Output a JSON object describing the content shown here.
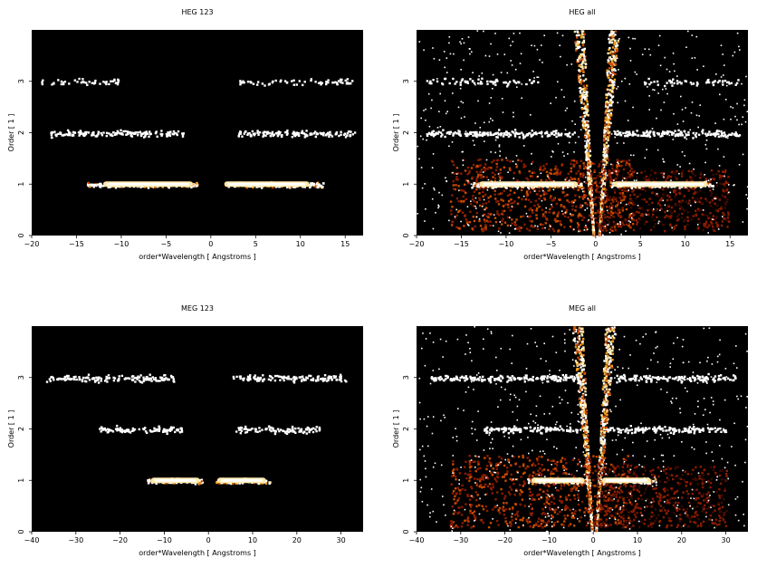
{
  "colors": {
    "background": "#000000",
    "page": "#ffffff",
    "colormap": [
      "#3a0a00",
      "#8a1c00",
      "#c84a00",
      "#f0a020",
      "#ffe9a8",
      "#ffffff"
    ]
  },
  "chart_data": [
    {
      "type": "heatmap",
      "title": "HEG 123",
      "xlabel": "order*Wavelength [ Angstroms ]",
      "ylabel": "Order [ 1 ]",
      "xlim": [
        -20,
        17
      ],
      "ylim": [
        0,
        4
      ],
      "xticks": [
        -20,
        -15,
        -10,
        -5,
        0,
        5,
        10,
        15
      ],
      "yticks": [
        0,
        1,
        2,
        3
      ],
      "bands": [
        {
          "order": 1,
          "x_ranges": [
            [
              -14,
              -1.5
            ],
            [
              1.5,
              12.5
            ]
          ],
          "density": "high",
          "core": [
            [
              -12,
              -2
            ],
            [
              1.5,
              11
            ]
          ]
        },
        {
          "order": 2,
          "x_ranges": [
            [
              -18,
              -3
            ],
            [
              3,
              16
            ]
          ],
          "density": "medium"
        },
        {
          "order": 3,
          "x_ranges": [
            [
              -19,
              -10
            ],
            [
              3,
              16
            ]
          ],
          "density": "low"
        }
      ],
      "cone": false
    },
    {
      "type": "heatmap",
      "title": "HEG all",
      "xlabel": "order*Wavelength [ Angstroms ]",
      "ylabel": "Order [ 1 ]",
      "xlim": [
        -20,
        17
      ],
      "ylim": [
        0,
        4
      ],
      "xticks": [
        -20,
        -15,
        -10,
        -5,
        0,
        5,
        10,
        15
      ],
      "yticks": [
        0,
        1,
        2,
        3
      ],
      "bands": [
        {
          "order": 1,
          "x_ranges": [
            [
              -14,
              -1.5
            ],
            [
              1.5,
              13
            ]
          ],
          "density": "high",
          "core": [
            [
              -13,
              -2
            ],
            [
              2,
              12.5
            ]
          ]
        },
        {
          "order": 2,
          "x_ranges": [
            [
              -19,
              -2
            ],
            [
              2,
              16
            ]
          ],
          "density": "medium"
        },
        {
          "order": 3,
          "x_ranges": [
            [
              -19,
              -6
            ],
            [
              5,
              16
            ]
          ],
          "density": "low"
        }
      ],
      "cone": true
    },
    {
      "type": "heatmap",
      "title": "MEG 123",
      "xlabel": "order*Wavelength [ Angstroms ]",
      "ylabel": "Order [ 1 ]",
      "xlim": [
        -40,
        35
      ],
      "ylim": [
        0,
        4
      ],
      "xticks": [
        -40,
        -30,
        -20,
        -10,
        0,
        10,
        20,
        30
      ],
      "yticks": [
        0,
        1,
        2,
        3
      ],
      "bands": [
        {
          "order": 1,
          "x_ranges": [
            [
              -14,
              -1.5
            ],
            [
              1.5,
              14
            ]
          ],
          "density": "high",
          "core": [
            [
              -13,
              -2
            ],
            [
              2,
              13
            ]
          ]
        },
        {
          "order": 2,
          "x_ranges": [
            [
              -25,
              -6
            ],
            [
              6,
              25
            ]
          ],
          "density": "medium"
        },
        {
          "order": 3,
          "x_ranges": [
            [
              -37,
              -8
            ],
            [
              5,
              31
            ]
          ],
          "density": "medium"
        }
      ],
      "cone": false
    },
    {
      "type": "heatmap",
      "title": "MEG all",
      "xlabel": "order*Wavelength [ Angstroms ]",
      "ylabel": "Order [ 1 ]",
      "xlim": [
        -40,
        35
      ],
      "ylim": [
        0,
        4
      ],
      "xticks": [
        -40,
        -30,
        -20,
        -10,
        0,
        10,
        20,
        30
      ],
      "yticks": [
        0,
        1,
        2,
        3
      ],
      "bands": [
        {
          "order": 1,
          "x_ranges": [
            [
              -15,
              -1.5
            ],
            [
              1.5,
              14
            ]
          ],
          "density": "high",
          "core": [
            [
              -14,
              -2
            ],
            [
              2,
              13
            ]
          ]
        },
        {
          "order": 2,
          "x_ranges": [
            [
              -25,
              -3
            ],
            [
              3,
              30
            ]
          ],
          "density": "medium"
        },
        {
          "order": 3,
          "x_ranges": [
            [
              -37,
              -3
            ],
            [
              5,
              32
            ]
          ],
          "density": "medium"
        }
      ],
      "cone": true
    }
  ]
}
